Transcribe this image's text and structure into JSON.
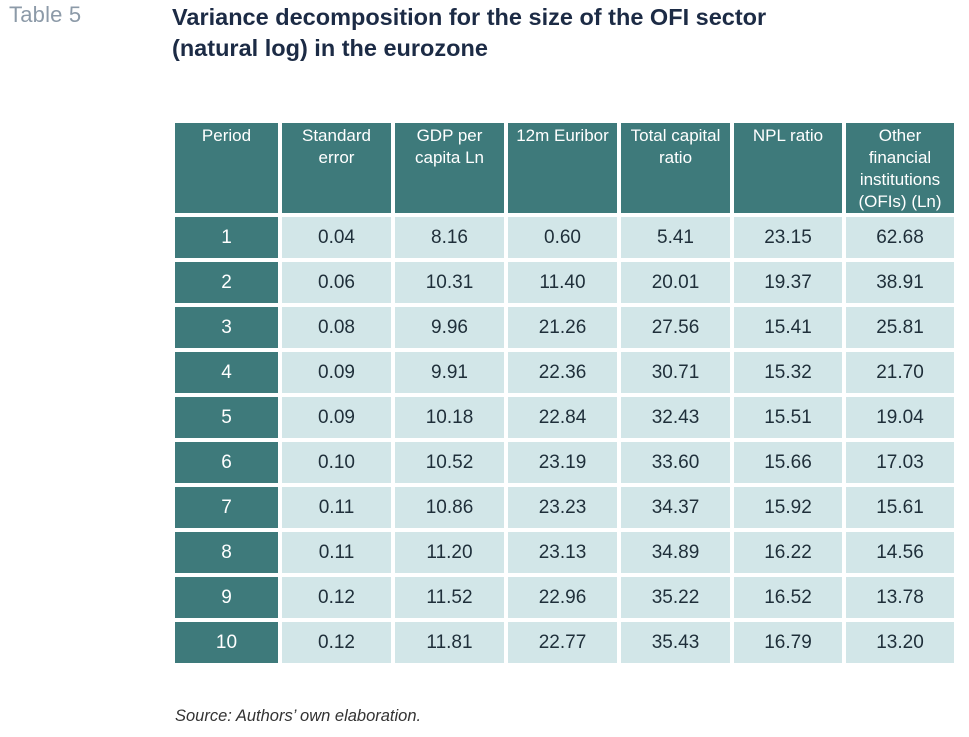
{
  "table_label": "Table 5",
  "title_line1": "Variance decomposition for the size of the OFI sector",
  "title_line2": "(natural log) in the eurozone",
  "headers": [
    "Period",
    "Standard error",
    "GDP per capita Ln",
    "12m Euribor",
    "Total capital ratio",
    "NPL ratio",
    "Other financial institutions (OFIs) (Ln)"
  ],
  "rows": [
    [
      "1",
      "0.04",
      "8.16",
      "0.60",
      "5.41",
      "23.15",
      "62.68"
    ],
    [
      "2",
      "0.06",
      "10.31",
      "11.40",
      "20.01",
      "19.37",
      "38.91"
    ],
    [
      "3",
      "0.08",
      "9.96",
      "21.26",
      "27.56",
      "15.41",
      "25.81"
    ],
    [
      "4",
      "0.09",
      "9.91",
      "22.36",
      "30.71",
      "15.32",
      "21.70"
    ],
    [
      "5",
      "0.09",
      "10.18",
      "22.84",
      "32.43",
      "15.51",
      "19.04"
    ],
    [
      "6",
      "0.10",
      "10.52",
      "23.19",
      "33.60",
      "15.66",
      "17.03"
    ],
    [
      "7",
      "0.11",
      "10.86",
      "23.23",
      "34.37",
      "15.92",
      "15.61"
    ],
    [
      "8",
      "0.11",
      "11.20",
      "23.13",
      "34.89",
      "16.22",
      "14.56"
    ],
    [
      "9",
      "0.12",
      "11.52",
      "22.96",
      "35.22",
      "16.52",
      "13.78"
    ],
    [
      "10",
      "0.12",
      "11.81",
      "22.77",
      "35.43",
      "16.79",
      "13.20"
    ]
  ],
  "source": "Source: Authors’ own elaboration.",
  "colors": {
    "header_bg": "#3e7a7b",
    "cell_bg": "#d2e6e8",
    "title": "#1c2b45",
    "table_label": "#8c9aa8"
  }
}
